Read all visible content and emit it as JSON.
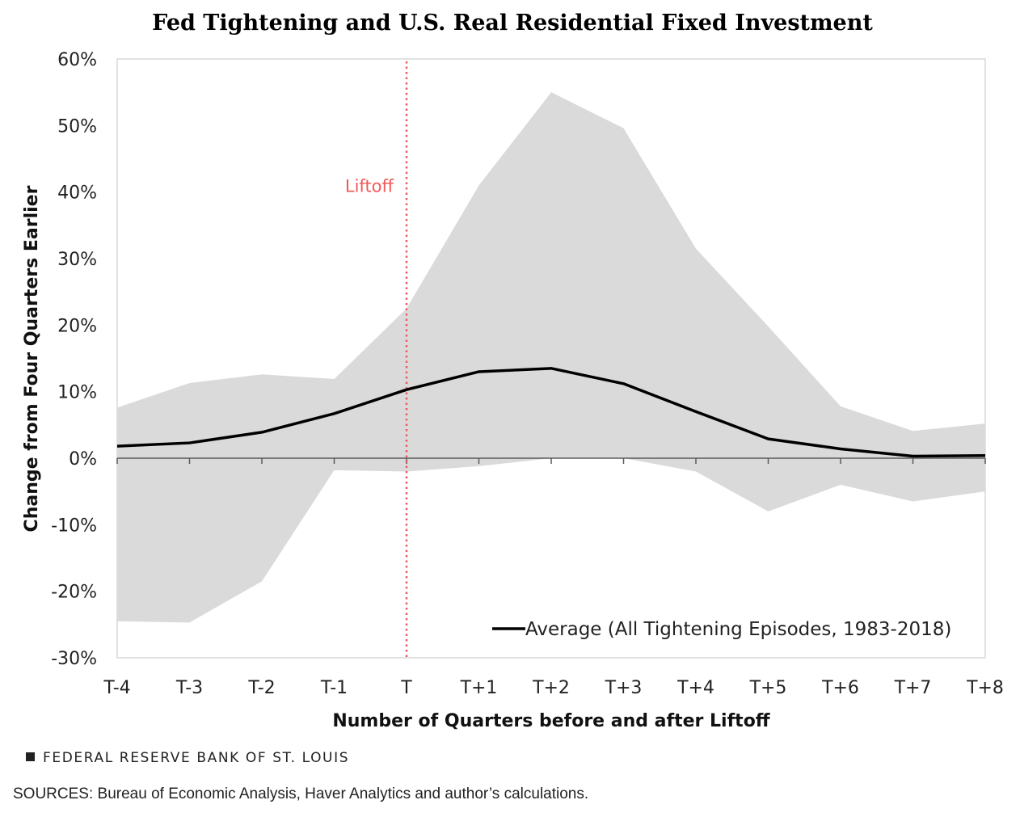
{
  "chart_data": {
    "type": "area",
    "title": "Fed Tightening and U.S. Real Residential Fixed Investment",
    "xlabel": "Number of Quarters before and after Liftoff",
    "ylabel": "Change from Four Quarters Earlier",
    "categories": [
      "T-4",
      "T-3",
      "T-2",
      "T-1",
      "T",
      "T+1",
      "T+2",
      "T+3",
      "T+4",
      "T+5",
      "T+6",
      "T+7",
      "T+8"
    ],
    "ylim": [
      -30,
      60
    ],
    "yticks": [
      -30,
      -20,
      -10,
      0,
      10,
      20,
      30,
      40,
      50,
      60
    ],
    "ytick_labels": [
      "-30%",
      "-20%",
      "-10%",
      "0%",
      "10%",
      "20%",
      "30%",
      "40%",
      "50%",
      "60%"
    ],
    "grid": false,
    "range_band": {
      "upper": [
        7.6,
        11.3,
        12.6,
        11.9,
        22.5,
        41.0,
        55.0,
        49.6,
        31.5,
        19.8,
        7.8,
        4.1,
        5.2
      ],
      "lower": [
        -24.5,
        -24.7,
        -18.5,
        -1.8,
        -2.0,
        -1.2,
        0.0,
        0.0,
        -2.0,
        -8.0,
        -4.0,
        -6.5,
        -5.0
      ],
      "color": "#dadada"
    },
    "series": [
      {
        "name": "Average (All Tightening Episodes, 1983-2018)",
        "values": [
          1.8,
          2.3,
          3.9,
          6.7,
          10.3,
          13.0,
          13.5,
          11.2,
          7.0,
          2.9,
          1.4,
          0.3,
          0.4
        ],
        "color": "#000000"
      }
    ],
    "annotations": [
      {
        "label": "Liftoff",
        "x": "T",
        "color": "#ef5a5a"
      }
    ],
    "legend_position": "bottom-right"
  },
  "footer": {
    "brand": "FEDERAL RESERVE BANK OF ST. LOUIS",
    "sources": "SOURCES: Bureau of Economic Analysis, Haver Analytics and author’s calculations."
  }
}
